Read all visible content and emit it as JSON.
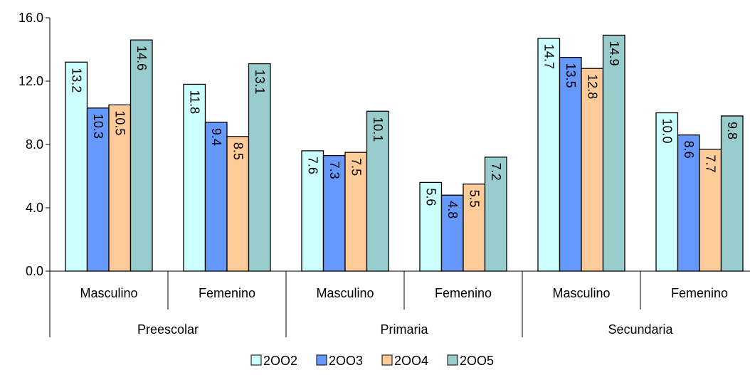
{
  "chart_data": {
    "type": "bar",
    "groups": [
      {
        "label": "Preescolar",
        "categories": [
          "Masculino",
          "Femenino"
        ]
      },
      {
        "label": "Primaria",
        "categories": [
          "Masculino",
          "Femenino"
        ]
      },
      {
        "label": "Secundaria",
        "categories": [
          "Masculino",
          "Femenino"
        ]
      }
    ],
    "categories": [
      "Preescolar Masculino",
      "Preescolar Femenino",
      "Primaria Masculino",
      "Primaria Femenino",
      "Secundaria Masculino",
      "Secundaria Femenino"
    ],
    "series": [
      {
        "name": "2OO2",
        "color": "#ccffff",
        "values": [
          13.2,
          11.8,
          7.6,
          5.6,
          14.7,
          10.0
        ]
      },
      {
        "name": "2OO3",
        "color": "#6699ff",
        "values": [
          10.3,
          9.4,
          7.3,
          4.8,
          13.5,
          8.6
        ]
      },
      {
        "name": "2OO4",
        "color": "#ffcc99",
        "values": [
          10.5,
          8.5,
          7.5,
          5.5,
          12.8,
          7.7
        ]
      },
      {
        "name": "2OO5",
        "color": "#99cccc",
        "values": [
          14.6,
          13.1,
          10.1,
          7.2,
          14.9,
          9.8
        ]
      }
    ],
    "ylim": [
      0,
      16
    ],
    "yticks": [
      "0.0",
      "4.0",
      "8.0",
      "12.0",
      "16.0"
    ],
    "ytick_values": [
      0,
      4,
      8,
      12,
      16
    ],
    "grid": false,
    "legend_position": "bottom",
    "title": "",
    "xlabel": "",
    "ylabel": ""
  }
}
